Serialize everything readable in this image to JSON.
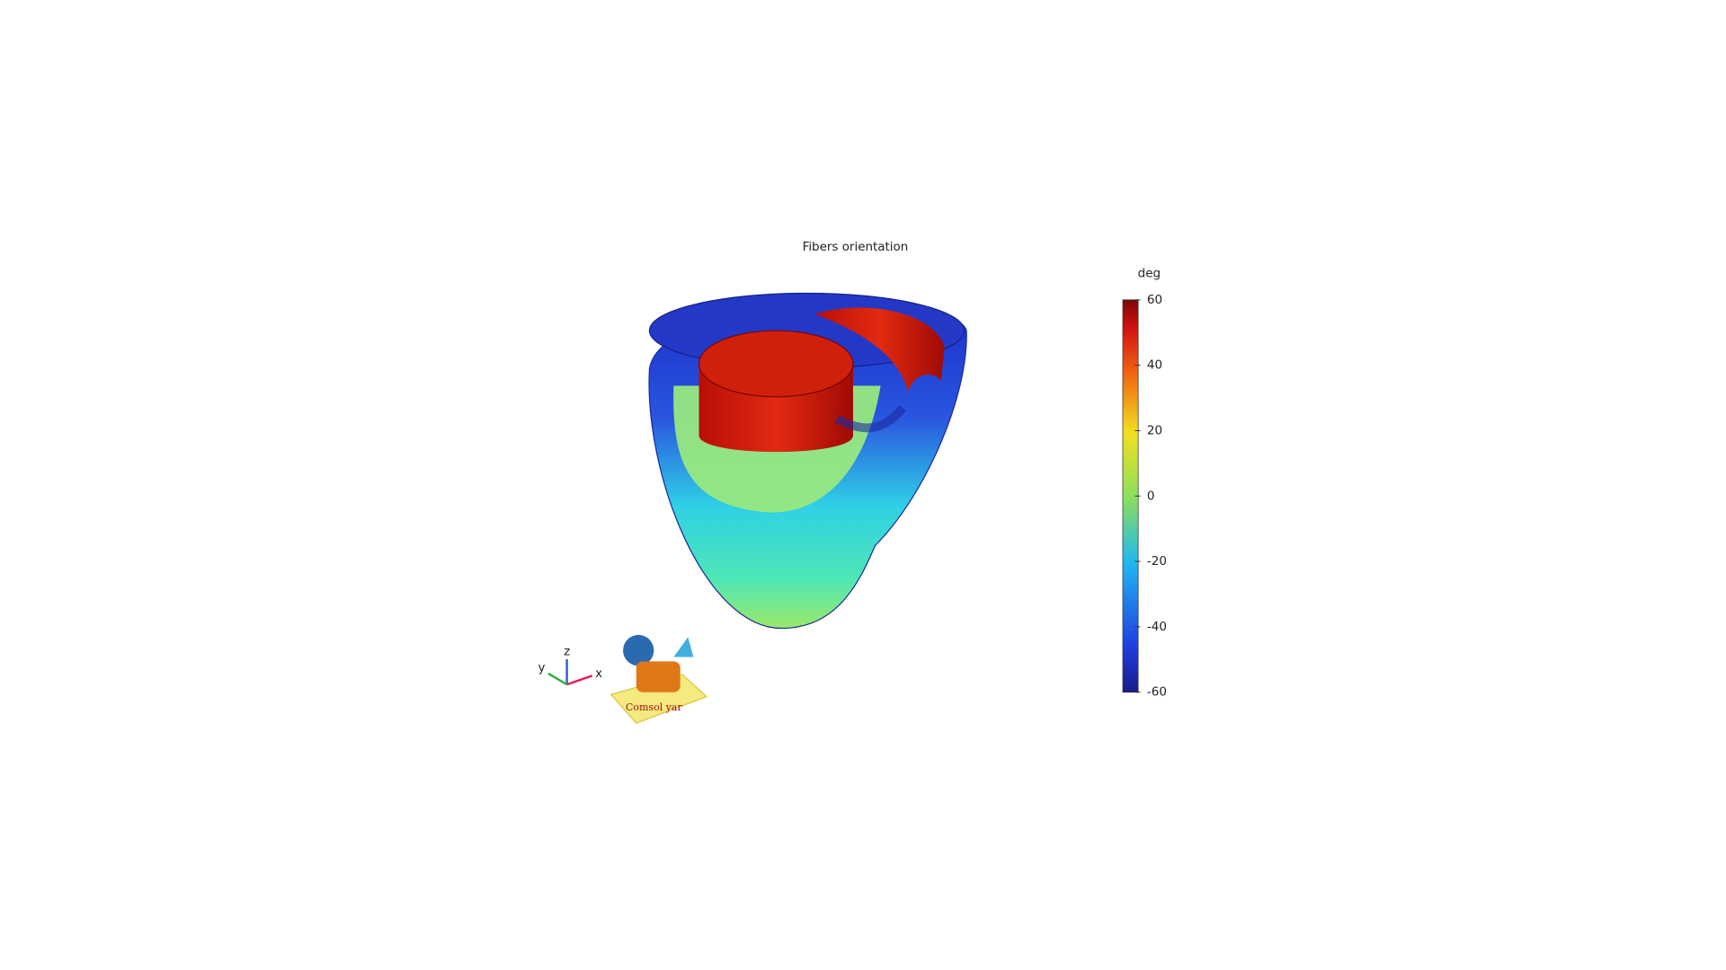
{
  "plot": {
    "title": "Fibers orientation",
    "colorbar": {
      "unit": "deg",
      "lim": [
        -60,
        60
      ],
      "ticks": [
        -60,
        -40,
        -20,
        0,
        20,
        40,
        60
      ]
    },
    "axes": {
      "x": "x",
      "y": "y",
      "z": "z"
    },
    "logo": "Comsol yar"
  }
}
